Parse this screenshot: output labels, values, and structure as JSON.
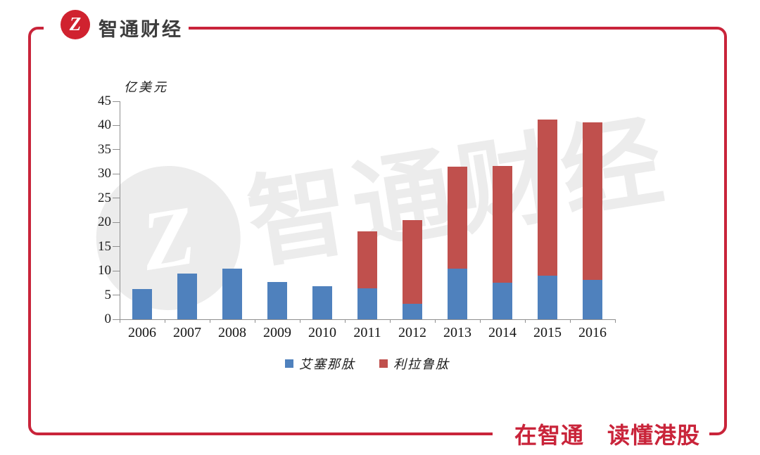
{
  "brand": {
    "name": "智通财经",
    "logo_letter": "Z"
  },
  "watermark": {
    "text": "智通财经",
    "logo_letter": "Z"
  },
  "footer": {
    "slogan": "在智通　读懂港股"
  },
  "colors": {
    "frame_red": "#c9243a",
    "logo_red": "#d0222f",
    "slogan_red": "#c9243a",
    "series_blue": "#4f81bd",
    "series_red": "#c0504d",
    "axis_gray": "#8f8f8f",
    "watermark_gray": "#ececec"
  },
  "chart_data": {
    "type": "bar",
    "stacked": true,
    "title": "",
    "ylabel": "亿美元",
    "xlabel": "",
    "categories": [
      "2006",
      "2007",
      "2008",
      "2009",
      "2010",
      "2011",
      "2012",
      "2013",
      "2014",
      "2015",
      "2016"
    ],
    "series": [
      {
        "name": "艾塞那肽",
        "color": "#4f81bd",
        "values": [
          6.3,
          9.5,
          10.5,
          7.7,
          6.8,
          6.4,
          3.2,
          10.5,
          7.5,
          9.0,
          8.1
        ]
      },
      {
        "name": "利拉鲁肽",
        "color": "#c0504d",
        "values": [
          0,
          0,
          0,
          0,
          0,
          11.7,
          17.3,
          21.0,
          24.2,
          32.2,
          32.5
        ]
      }
    ],
    "totals": [
      6.3,
      9.5,
      10.5,
      7.7,
      6.8,
      18.1,
      20.5,
      31.5,
      31.7,
      41.2,
      40.6
    ],
    "ylim": [
      0,
      45
    ],
    "ytick_interval": 5,
    "grid": false,
    "legend_position": "bottom"
  }
}
